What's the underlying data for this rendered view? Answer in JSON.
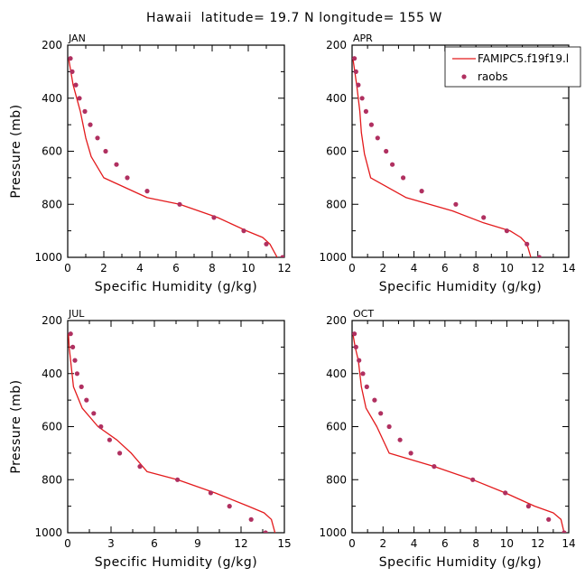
{
  "colors": {
    "model_line": "#e31a1c",
    "raobs_marker": "#b03060",
    "axis": "#000000"
  },
  "chart_data": {
    "type": "line",
    "title": "Hawaii  latitude= 19.7 N longitude= 155 W",
    "legend": {
      "placement": "top-right",
      "entries": [
        {
          "name": "FAMIPC5.f19f19.l",
          "style": "line",
          "color": "#e31a1c"
        },
        {
          "name": "raobs",
          "style": "marker",
          "color": "#b03060"
        }
      ]
    },
    "panels": [
      {
        "label": "JAN",
        "xlabel": "Specific Humidity (g/kg)",
        "ylabel": "Pressure (mb)",
        "xlim": [
          0,
          12
        ],
        "ylim": [
          1000,
          200
        ],
        "xticks": [
          0,
          2,
          4,
          6,
          8,
          10,
          12
        ],
        "yticks": [
          200,
          400,
          600,
          800,
          1000
        ],
        "series": [
          {
            "name": "FAMIPC5.f19f19.l",
            "type": "line",
            "x": [
              0.05,
              0.3,
              0.7,
              1.0,
              1.3,
              2.0,
              4.4,
              6.2,
              8.3,
              9.9,
              10.8,
              11.2,
              11.6
            ],
            "y": [
              250,
              350,
              450,
              550,
              620,
              700,
              775,
              800,
              850,
              900,
              925,
              950,
              1000
            ]
          },
          {
            "name": "raobs",
            "type": "scatter",
            "x": [
              0.15,
              0.25,
              0.45,
              0.65,
              0.95,
              1.25,
              1.65,
              2.1,
              2.7,
              3.3,
              4.4,
              6.2,
              8.1,
              9.75,
              11.0,
              11.9
            ],
            "y": [
              250,
              300,
              350,
              400,
              450,
              500,
              550,
              600,
              650,
              700,
              750,
              800,
              850,
              900,
              950,
              1000
            ]
          }
        ]
      },
      {
        "label": "APR",
        "xlabel": "Specific Humidity (g/kg)",
        "ylabel": "Pressure (mb)",
        "xlim": [
          0,
          14
        ],
        "ylim": [
          1000,
          200
        ],
        "xticks": [
          0,
          2,
          4,
          6,
          8,
          10,
          12,
          14
        ],
        "yticks": [
          200,
          400,
          600,
          800,
          1000
        ],
        "series": [
          {
            "name": "FAMIPC5.f19f19.l",
            "type": "line",
            "x": [
              0.05,
              0.3,
              0.5,
              0.6,
              0.8,
              1.2,
              3.5,
              6.5,
              8.5,
              10.2,
              10.9,
              11.3,
              11.6
            ],
            "y": [
              250,
              350,
              450,
              530,
              610,
              700,
              775,
              825,
              870,
              900,
              925,
              950,
              1010
            ]
          },
          {
            "name": "raobs",
            "type": "scatter",
            "x": [
              0.15,
              0.25,
              0.4,
              0.65,
              0.9,
              1.25,
              1.65,
              2.2,
              2.6,
              3.3,
              4.5,
              6.7,
              8.5,
              10.0,
              11.3,
              12.1
            ],
            "y": [
              250,
              300,
              350,
              400,
              450,
              500,
              550,
              600,
              650,
              700,
              750,
              800,
              850,
              900,
              950,
              1000
            ]
          }
        ]
      },
      {
        "label": "JUL",
        "xlabel": "Specific Humidity (g/kg)",
        "ylabel": "Pressure (mb)",
        "xlim": [
          0,
          15
        ],
        "ylim": [
          1000,
          200
        ],
        "xticks": [
          0,
          3,
          6,
          9,
          12,
          15
        ],
        "yticks": [
          200,
          400,
          600,
          800,
          1000
        ],
        "series": [
          {
            "name": "FAMIPC5.f19f19.l",
            "type": "line",
            "x": [
              0.05,
              0.1,
              0.2,
              0.4,
              1.0,
              2.1,
              3.4,
              4.4,
              5.5,
              7.6,
              10.2,
              12.5,
              13.6,
              14.1,
              14.4
            ],
            "y": [
              250,
              300,
              350,
              450,
              530,
              600,
              650,
              700,
              770,
              800,
              850,
              900,
              925,
              950,
              1010
            ]
          },
          {
            "name": "raobs",
            "type": "scatter",
            "x": [
              0.2,
              0.35,
              0.5,
              0.65,
              0.95,
              1.3,
              1.8,
              2.3,
              2.9,
              3.6,
              5.0,
              7.6,
              9.9,
              11.2,
              12.7,
              13.7
            ],
            "y": [
              250,
              300,
              350,
              400,
              450,
              500,
              550,
              600,
              650,
              700,
              750,
              800,
              850,
              900,
              950,
              1000
            ]
          }
        ]
      },
      {
        "label": "OCT",
        "xlabel": "Specific Humidity (g/kg)",
        "ylabel": "Pressure (mb)",
        "xlim": [
          0,
          14
        ],
        "ylim": [
          1000,
          200
        ],
        "xticks": [
          0,
          2,
          4,
          6,
          8,
          10,
          12,
          14
        ],
        "yticks": [
          200,
          400,
          600,
          800,
          1000
        ],
        "series": [
          {
            "name": "FAMIPC5.f19f19.l",
            "type": "line",
            "x": [
              0.05,
              0.2,
              0.4,
              0.6,
              0.9,
              1.6,
              2.4,
              5.3,
              7.8,
              9.9,
              11.8,
              13.0,
              13.5,
              13.7
            ],
            "y": [
              250,
              300,
              350,
              450,
              530,
              600,
              700,
              750,
              800,
              850,
              900,
              925,
              950,
              1000
            ]
          },
          {
            "name": "raobs",
            "type": "scatter",
            "x": [
              0.15,
              0.25,
              0.45,
              0.7,
              0.95,
              1.45,
              1.85,
              2.4,
              3.1,
              3.8,
              5.3,
              7.8,
              9.9,
              11.4,
              12.7,
              13.7
            ],
            "y": [
              250,
              300,
              350,
              400,
              450,
              500,
              550,
              600,
              650,
              700,
              750,
              800,
              850,
              900,
              950,
              1000
            ]
          }
        ]
      }
    ]
  }
}
